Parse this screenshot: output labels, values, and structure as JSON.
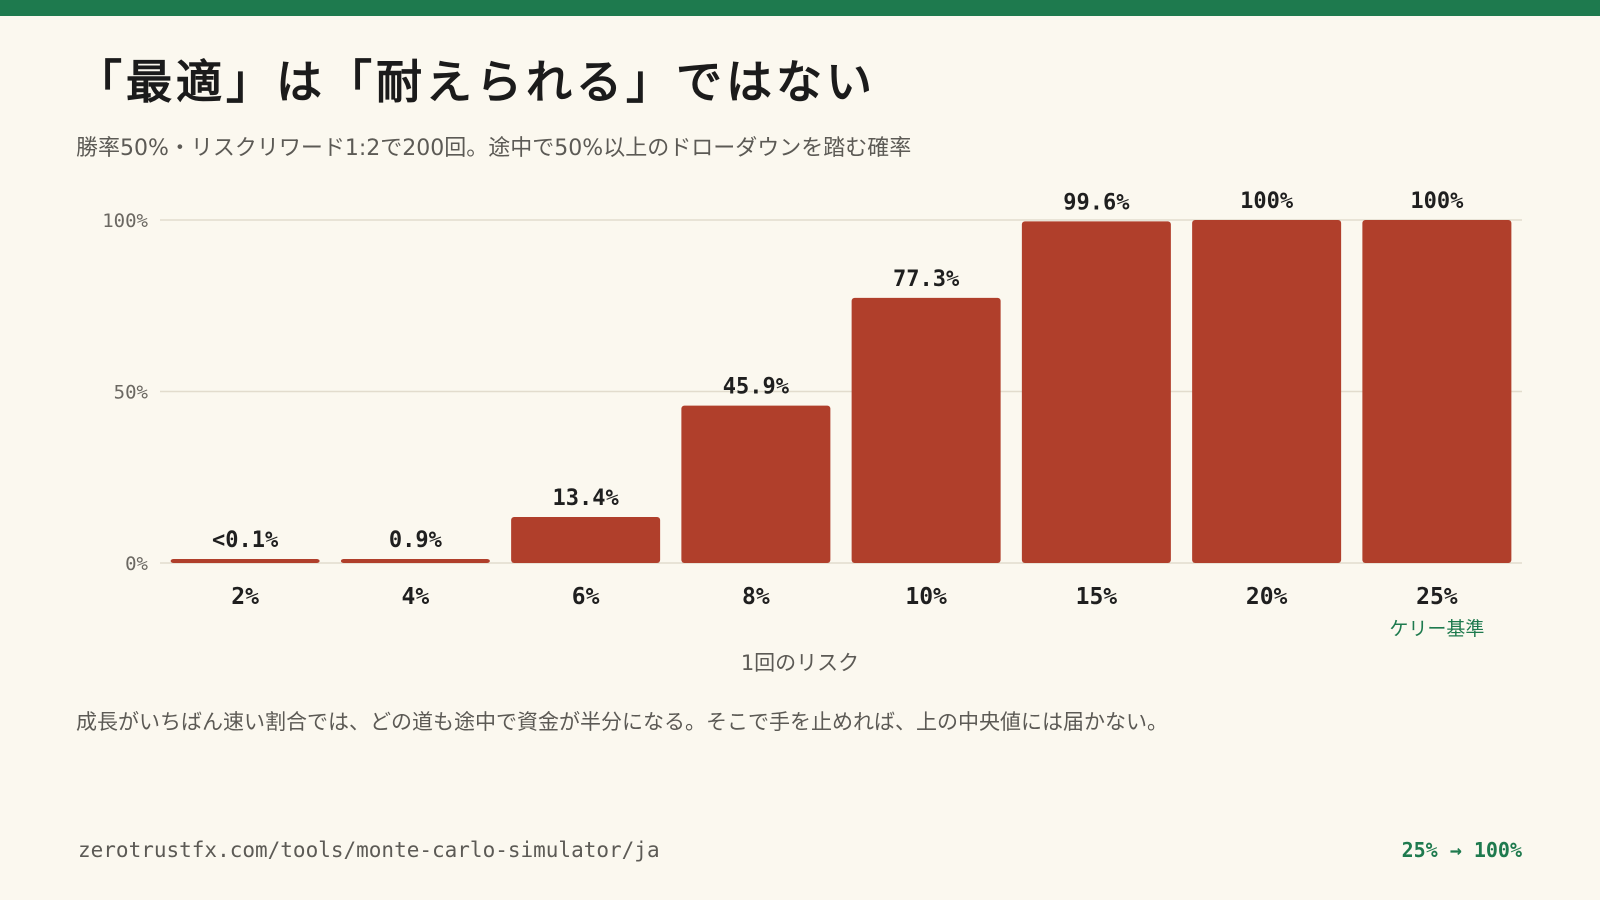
{
  "header": {
    "title": "「最適」は「耐えられる」ではない",
    "subtitle": "勝率50%・リスクリワード1:2で200回。途中で50%以上のドローダウンを踏む確率"
  },
  "chart_data": {
    "type": "bar",
    "categories": [
      "2%",
      "4%",
      "6%",
      "8%",
      "10%",
      "15%",
      "20%",
      "25%"
    ],
    "values": [
      0.1,
      0.9,
      13.4,
      45.9,
      77.3,
      99.6,
      100,
      100
    ],
    "data_labels": [
      "<0.1%",
      "0.9%",
      "13.4%",
      "45.9%",
      "77.3%",
      "99.6%",
      "100%",
      "100%"
    ],
    "category_notes": [
      "",
      "",
      "",
      "",
      "",
      "",
      "",
      "ケリー基準"
    ],
    "xlabel": "1回のリスク",
    "ylabel": "",
    "ylim": [
      0,
      100
    ],
    "yticks": [
      0,
      50,
      100
    ],
    "ytick_labels": [
      "0%",
      "50%",
      "100%"
    ],
    "grid": true,
    "bar_color": "#b03f2b",
    "note_color": "#1e7a4e"
  },
  "caption": "成長がいちばん速い割合では、どの道も途中で資金が半分になる。そこで手を止めれば、上の中央値には届かない。",
  "footer": {
    "url": "zerotrustfx.com/tools/monte-carlo-simulator/ja",
    "note": "25% → 100%"
  },
  "colors": {
    "accent": "#1e7a4e",
    "background": "#fbf8ef"
  }
}
